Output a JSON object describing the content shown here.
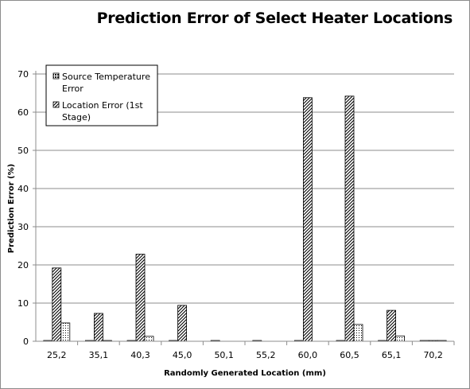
{
  "chart_data": {
    "type": "bar",
    "title": "Prediction Error of Select Heater Locations",
    "xlabel": "Randomly Generated Location (mm)",
    "ylabel": "Prediction Error (%)",
    "ylim": [
      0,
      70
    ],
    "yticks": [
      "0",
      "10",
      "20",
      "30",
      "40",
      "50",
      "60",
      "70"
    ],
    "grid": true,
    "legend_position": "top-left",
    "categories": [
      "25,2",
      "35,1",
      "40,3",
      "45,0",
      "50,1",
      "55,2",
      "60,0",
      "60,5",
      "65,1",
      "70,2"
    ],
    "series": [
      {
        "name": "Source Temperature Error",
        "values": [
          0.2,
          0.2,
          0.2,
          0.2,
          0.2,
          0.2,
          0.2,
          0.2,
          0.2,
          0.2
        ]
      },
      {
        "name": "Location Error (1st Stage)",
        "values": [
          19.2,
          7.3,
          22.8,
          9.4,
          0,
          0,
          63.8,
          64.2,
          8.1,
          0.2
        ]
      },
      {
        "values": [
          4.8,
          0.2,
          1.3,
          0,
          0,
          0,
          0,
          4.4,
          1.4,
          0.2
        ]
      }
    ]
  }
}
